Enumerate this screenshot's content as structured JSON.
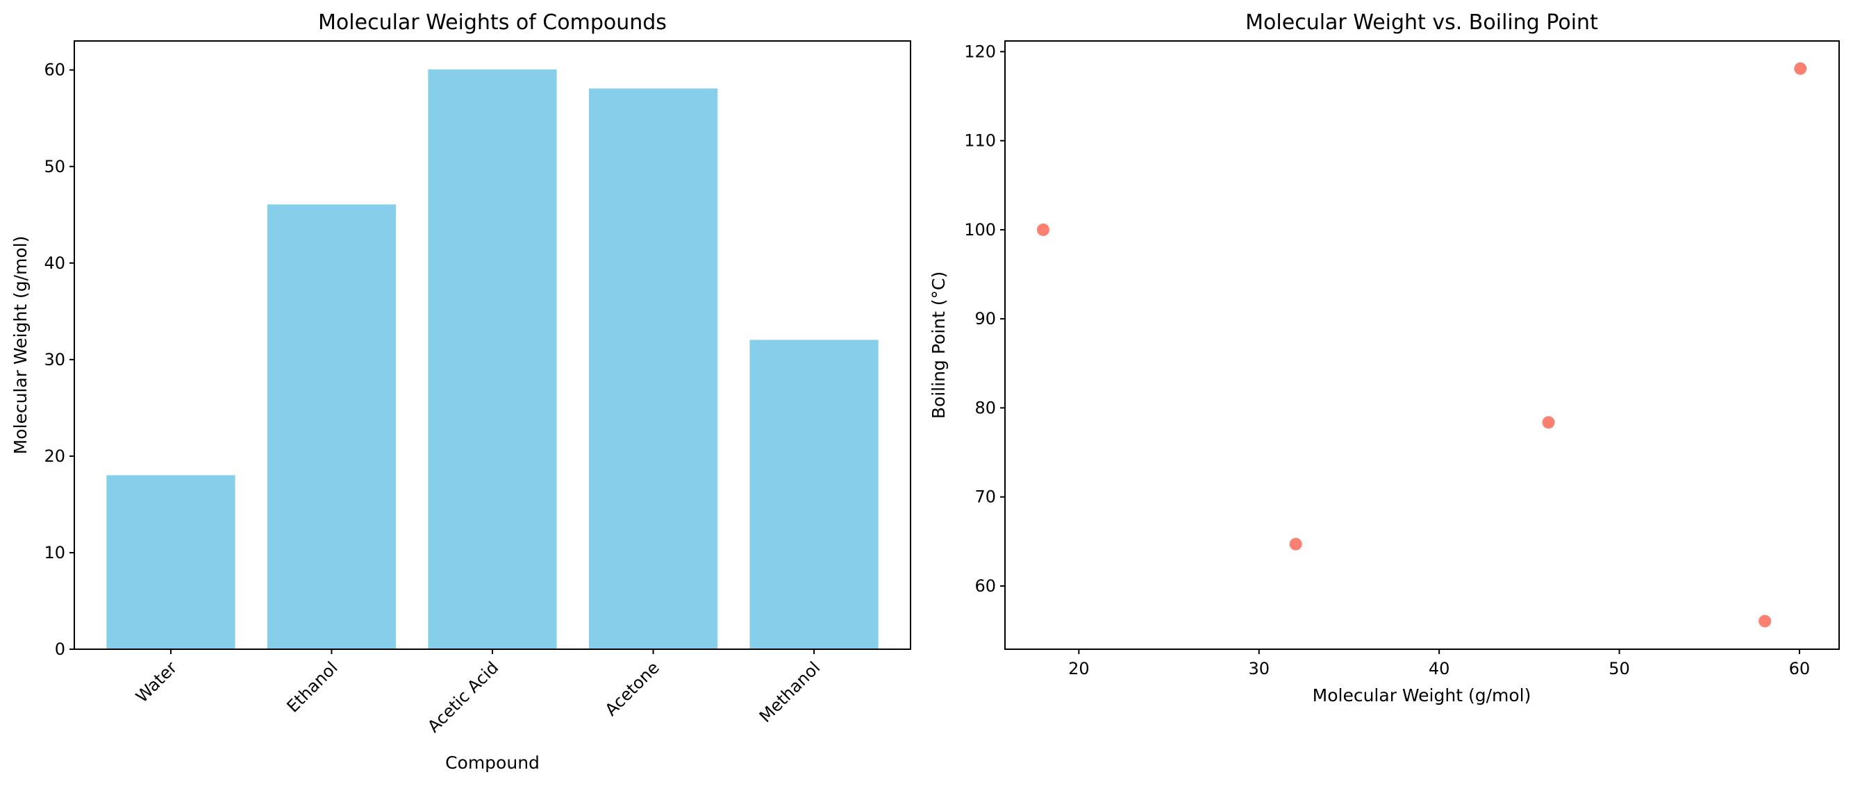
{
  "chart_data": [
    {
      "type": "bar",
      "title": "Molecular Weights of Compounds",
      "xlabel": "Compound",
      "ylabel": "Molecular Weight (g/mol)",
      "categories": [
        "Water",
        "Ethanol",
        "Acetic Acid",
        "Acetone",
        "Methanol"
      ],
      "values": [
        18.02,
        46.07,
        60.05,
        58.08,
        32.04
      ],
      "ylim": [
        0,
        63
      ],
      "yticks": [
        0,
        10,
        20,
        30,
        40,
        50,
        60
      ],
      "color": "#87ceeb",
      "grid": false
    },
    {
      "type": "scatter",
      "title": "Molecular Weight vs. Boiling Point",
      "xlabel": "Molecular Weight (g/mol)",
      "ylabel": "Boiling Point (°C)",
      "x": [
        18.02,
        46.07,
        60.05,
        58.08,
        32.04
      ],
      "y": [
        100,
        78.37,
        118.1,
        56.05,
        64.7
      ],
      "xlim": [
        15.9,
        62.2
      ],
      "ylim": [
        52.9,
        121.2
      ],
      "xticks": [
        20,
        30,
        40,
        50,
        60
      ],
      "yticks": [
        60,
        70,
        80,
        90,
        100,
        110,
        120
      ],
      "color": "#fa8072",
      "grid": false
    }
  ]
}
